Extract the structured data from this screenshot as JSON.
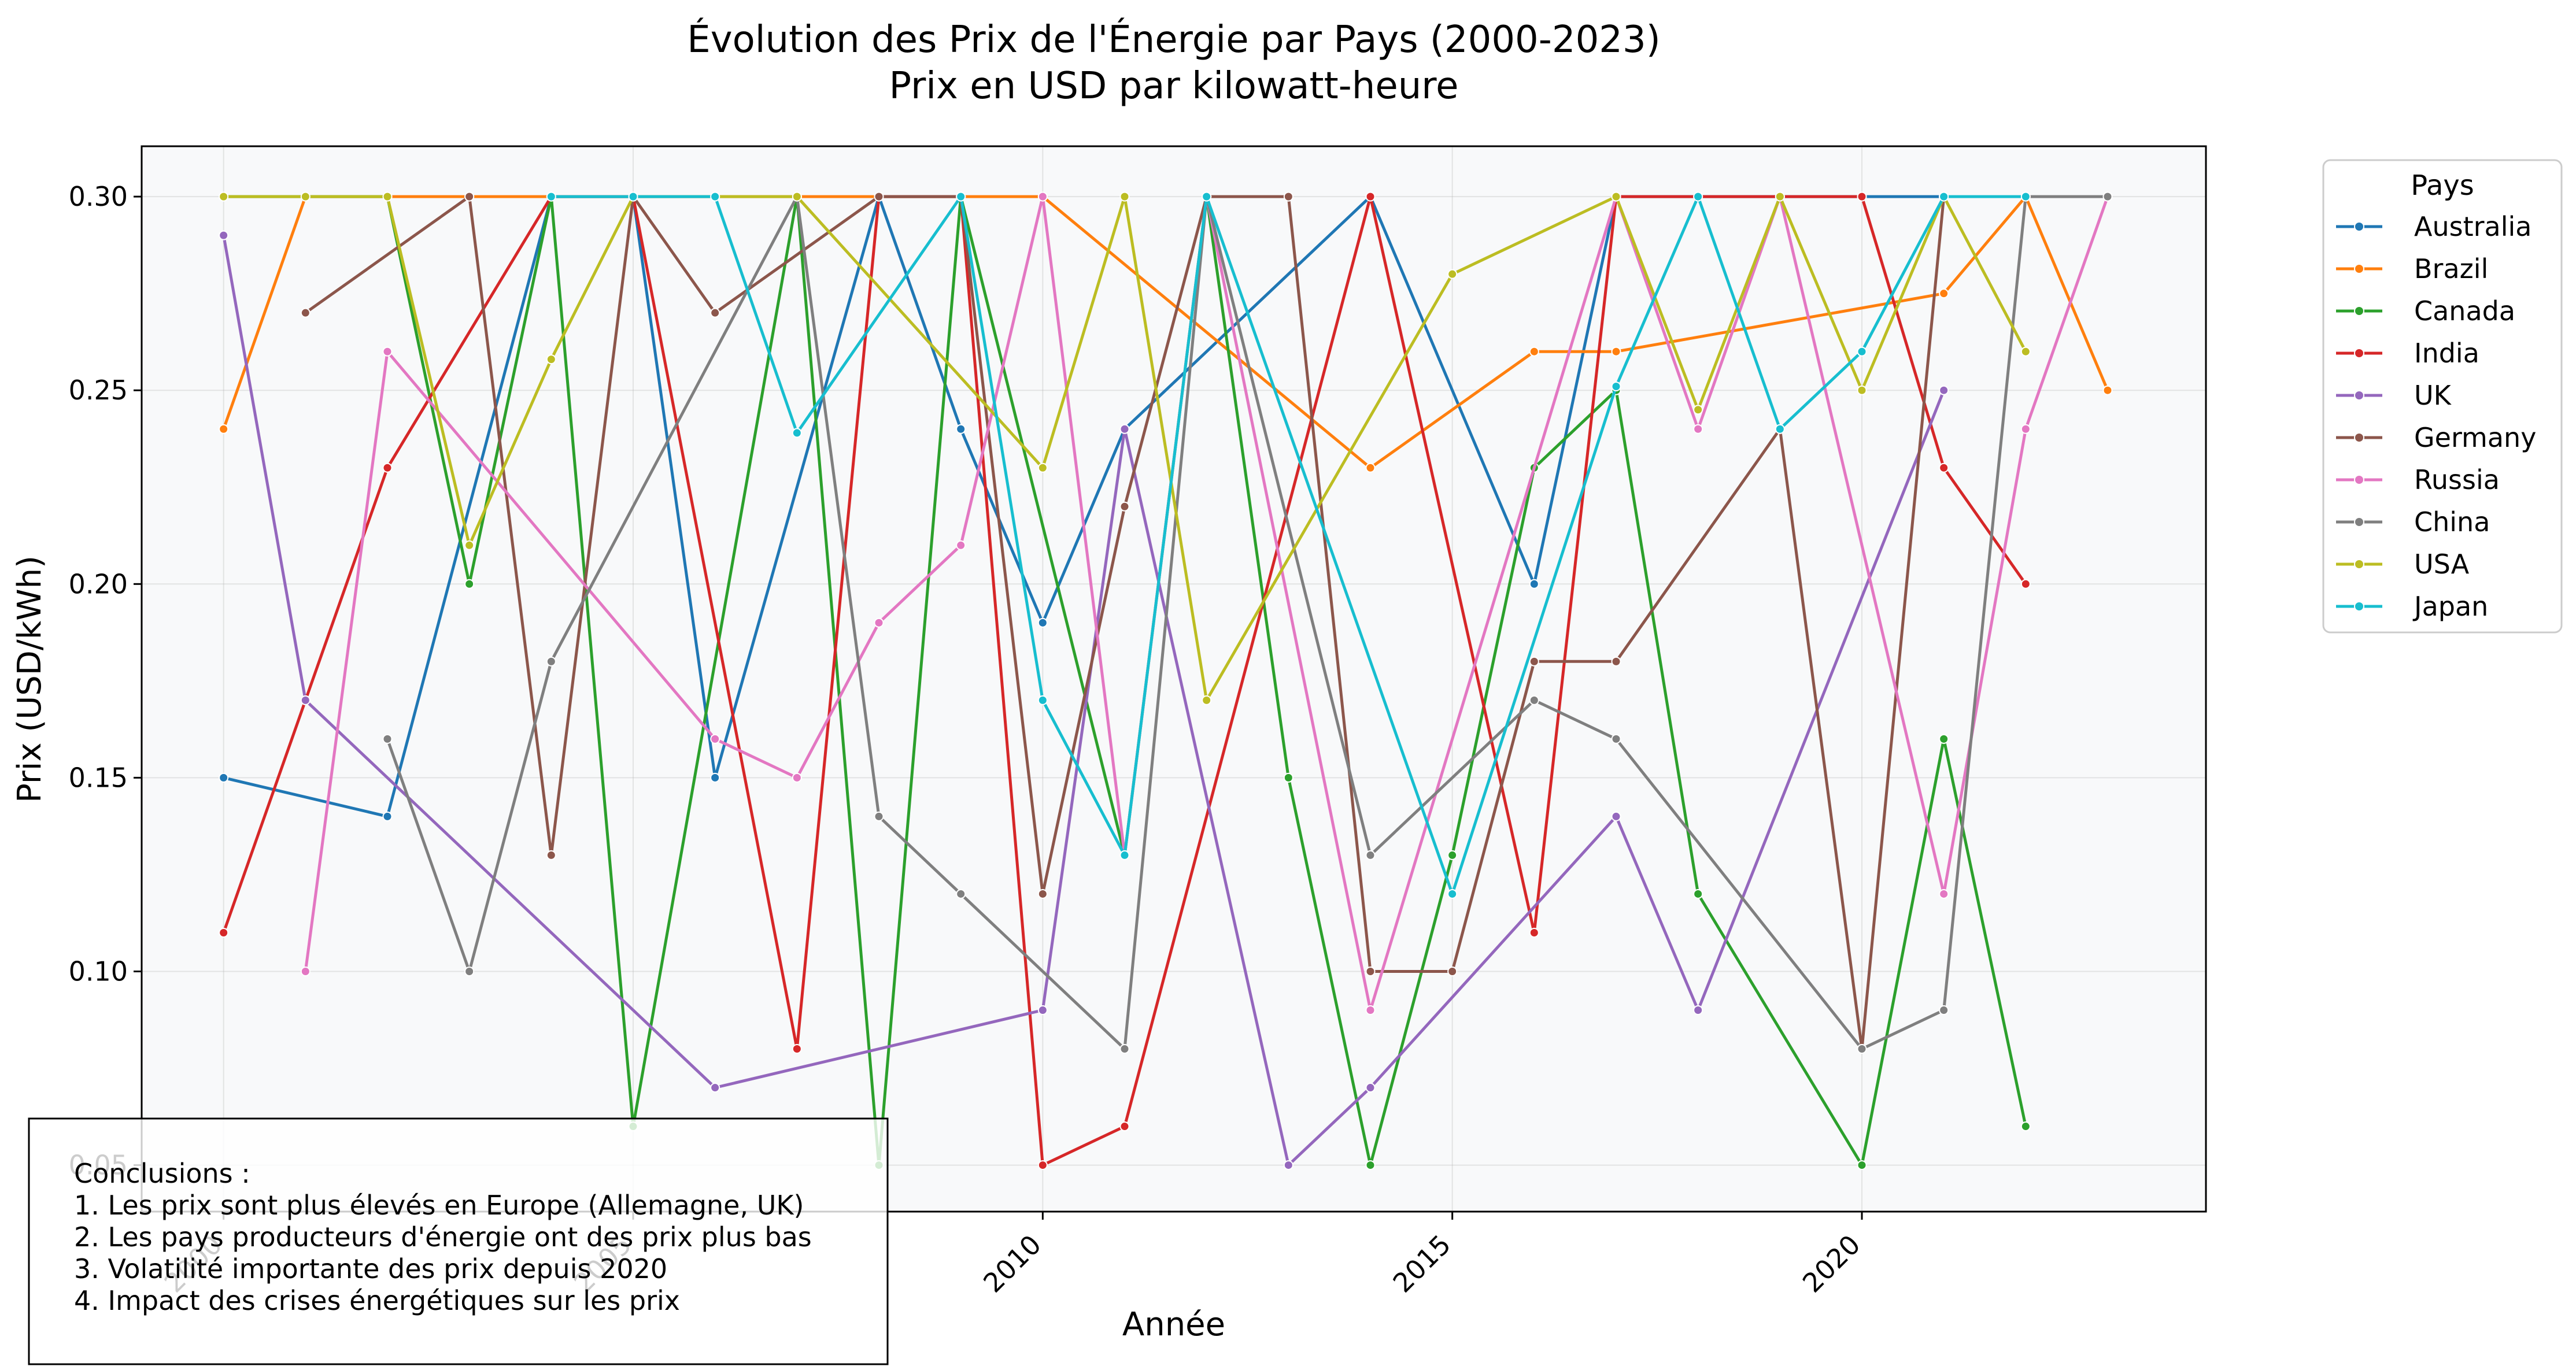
{
  "chart_data": {
    "type": "line",
    "title": "Évolution des Prix de l'Énergie par Pays (2000-2023)",
    "subtitle": "Prix en USD par kilowatt-heure",
    "xlabel": "Année",
    "ylabel": "Prix (USD/kWh)",
    "xlim": [
      1999.0,
      2024.2
    ],
    "ylim": [
      0.038,
      0.313
    ],
    "x_ticks": [
      2000,
      2005,
      2010,
      2015,
      2020
    ],
    "y_ticks": [
      0.05,
      0.1,
      0.15,
      0.2,
      0.25,
      0.3
    ],
    "y_tick_labels": [
      "0.05",
      "0.10",
      "0.15",
      "0.20",
      "0.25",
      "0.30"
    ],
    "grid": true,
    "legend_title": "Pays",
    "legend_position": "outside-right-top",
    "series": [
      {
        "name": "Australia",
        "color": "#1f77b4",
        "points": [
          [
            2000,
            0.15
          ],
          [
            2002,
            0.14
          ],
          [
            2004,
            0.3
          ],
          [
            2005,
            0.3
          ],
          [
            2006,
            0.15
          ],
          [
            2008,
            0.3
          ],
          [
            2009,
            0.24
          ],
          [
            2010,
            0.19
          ],
          [
            2011,
            0.24
          ],
          [
            2014,
            0.3
          ],
          [
            2016,
            0.2
          ],
          [
            2017,
            0.3
          ],
          [
            2018,
            0.3
          ],
          [
            2019,
            0.3
          ],
          [
            2020,
            0.3
          ],
          [
            2021,
            0.3
          ]
        ]
      },
      {
        "name": "Brazil",
        "color": "#ff7f0e",
        "points": [
          [
            2000,
            0.24
          ],
          [
            2001,
            0.3
          ],
          [
            2002,
            0.3
          ],
          [
            2003,
            0.3
          ],
          [
            2004,
            0.3
          ],
          [
            2005,
            0.3
          ],
          [
            2006,
            0.3
          ],
          [
            2007,
            0.3
          ],
          [
            2008,
            0.3
          ],
          [
            2009,
            0.3
          ],
          [
            2010,
            0.3
          ],
          [
            2014,
            0.23
          ],
          [
            2016,
            0.26
          ],
          [
            2017,
            0.26
          ],
          [
            2021,
            0.275
          ],
          [
            2022,
            0.3
          ],
          [
            2023,
            0.25
          ]
        ]
      },
      {
        "name": "Canada",
        "color": "#2ca02c",
        "points": [
          [
            2000,
            0.3
          ],
          [
            2001,
            0.3
          ],
          [
            2002,
            0.3
          ],
          [
            2003,
            0.2
          ],
          [
            2004,
            0.3
          ],
          [
            2005,
            0.06
          ],
          [
            2007,
            0.3
          ],
          [
            2008,
            0.05
          ],
          [
            2009,
            0.3
          ],
          [
            2011,
            0.13
          ],
          [
            2012,
            0.3
          ],
          [
            2013,
            0.15
          ],
          [
            2014,
            0.05
          ],
          [
            2015,
            0.13
          ],
          [
            2016,
            0.23
          ],
          [
            2017,
            0.25
          ],
          [
            2018,
            0.12
          ],
          [
            2020,
            0.05
          ],
          [
            2021,
            0.16
          ],
          [
            2022,
            0.06
          ]
        ]
      },
      {
        "name": "India",
        "color": "#d62728",
        "points": [
          [
            2000,
            0.11
          ],
          [
            2001,
            0.17
          ],
          [
            2002,
            0.23
          ],
          [
            2004,
            0.3
          ],
          [
            2005,
            0.3
          ],
          [
            2007,
            0.08
          ],
          [
            2008,
            0.3
          ],
          [
            2009,
            0.3
          ],
          [
            2010,
            0.05
          ],
          [
            2011,
            0.06
          ],
          [
            2014,
            0.3
          ],
          [
            2016,
            0.11
          ],
          [
            2017,
            0.3
          ],
          [
            2018,
            0.3
          ],
          [
            2019,
            0.3
          ],
          [
            2020,
            0.3
          ],
          [
            2021,
            0.23
          ],
          [
            2022,
            0.2
          ]
        ]
      },
      {
        "name": "UK",
        "color": "#9467bd",
        "points": [
          [
            2000,
            0.29
          ],
          [
            2001,
            0.17
          ],
          [
            2006,
            0.07
          ],
          [
            2010,
            0.09
          ],
          [
            2011,
            0.24
          ],
          [
            2013,
            0.05
          ],
          [
            2014,
            0.07
          ],
          [
            2017,
            0.14
          ],
          [
            2018,
            0.09
          ],
          [
            2021,
            0.25
          ]
        ]
      },
      {
        "name": "Germany",
        "color": "#8c564b",
        "points": [
          [
            2001,
            0.27
          ],
          [
            2003,
            0.3
          ],
          [
            2004,
            0.13
          ],
          [
            2005,
            0.3
          ],
          [
            2006,
            0.27
          ],
          [
            2008,
            0.3
          ],
          [
            2009,
            0.3
          ],
          [
            2010,
            0.12
          ],
          [
            2011,
            0.22
          ],
          [
            2012,
            0.3
          ],
          [
            2013,
            0.3
          ],
          [
            2014,
            0.1
          ],
          [
            2015,
            0.1
          ],
          [
            2016,
            0.18
          ],
          [
            2017,
            0.18
          ],
          [
            2019,
            0.24
          ],
          [
            2020,
            0.08
          ],
          [
            2021,
            0.3
          ]
        ]
      },
      {
        "name": "Russia",
        "color": "#e377c2",
        "points": [
          [
            2001,
            0.1
          ],
          [
            2002,
            0.26
          ],
          [
            2006,
            0.16
          ],
          [
            2007,
            0.15
          ],
          [
            2008,
            0.19
          ],
          [
            2009,
            0.21
          ],
          [
            2010,
            0.3
          ],
          [
            2011,
            0.13
          ],
          [
            2012,
            0.3
          ],
          [
            2014,
            0.09
          ],
          [
            2017,
            0.3
          ],
          [
            2018,
            0.24
          ],
          [
            2019,
            0.3
          ],
          [
            2021,
            0.12
          ],
          [
            2022,
            0.24
          ],
          [
            2023,
            0.3
          ]
        ]
      },
      {
        "name": "China",
        "color": "#7f7f7f",
        "points": [
          [
            2002,
            0.16
          ],
          [
            2003,
            0.1
          ],
          [
            2004,
            0.18
          ],
          [
            2007,
            0.3
          ],
          [
            2008,
            0.14
          ],
          [
            2009,
            0.12
          ],
          [
            2011,
            0.08
          ],
          [
            2012,
            0.3
          ],
          [
            2014,
            0.13
          ],
          [
            2016,
            0.17
          ],
          [
            2017,
            0.16
          ],
          [
            2020,
            0.08
          ],
          [
            2021,
            0.09
          ],
          [
            2022,
            0.3
          ],
          [
            2023,
            0.3
          ]
        ]
      },
      {
        "name": "USA",
        "color": "#bcbd22",
        "points": [
          [
            2000,
            0.3
          ],
          [
            2001,
            0.3
          ],
          [
            2002,
            0.3
          ],
          [
            2003,
            0.21
          ],
          [
            2004,
            0.258
          ],
          [
            2005,
            0.3
          ],
          [
            2006,
            0.3
          ],
          [
            2007,
            0.3
          ],
          [
            2010,
            0.23
          ],
          [
            2011,
            0.3
          ],
          [
            2012,
            0.17
          ],
          [
            2015,
            0.28
          ],
          [
            2017,
            0.3
          ],
          [
            2018,
            0.245
          ],
          [
            2019,
            0.3
          ],
          [
            2020,
            0.25
          ],
          [
            2021,
            0.3
          ],
          [
            2022,
            0.26
          ]
        ]
      },
      {
        "name": "Japan",
        "color": "#17becf",
        "points": [
          [
            2004,
            0.3
          ],
          [
            2005,
            0.3
          ],
          [
            2006,
            0.3
          ],
          [
            2007,
            0.239
          ],
          [
            2009,
            0.3
          ],
          [
            2010,
            0.17
          ],
          [
            2011,
            0.13
          ],
          [
            2012,
            0.3
          ],
          [
            2015,
            0.12
          ],
          [
            2017,
            0.251
          ],
          [
            2018,
            0.3
          ],
          [
            2019,
            0.24
          ],
          [
            2020,
            0.26
          ],
          [
            2021,
            0.3
          ],
          [
            2022,
            0.3
          ]
        ]
      }
    ],
    "annotation": {
      "title": "Conclusions :",
      "lines": [
        "1. Les prix sont plus élevés en Europe (Allemagne, UK)",
        "2. Les pays producteurs d'énergie ont des prix plus bas",
        "3. Volatilité importante des prix depuis 2020",
        "4. Impact des crises énergétiques sur les prix"
      ]
    }
  }
}
